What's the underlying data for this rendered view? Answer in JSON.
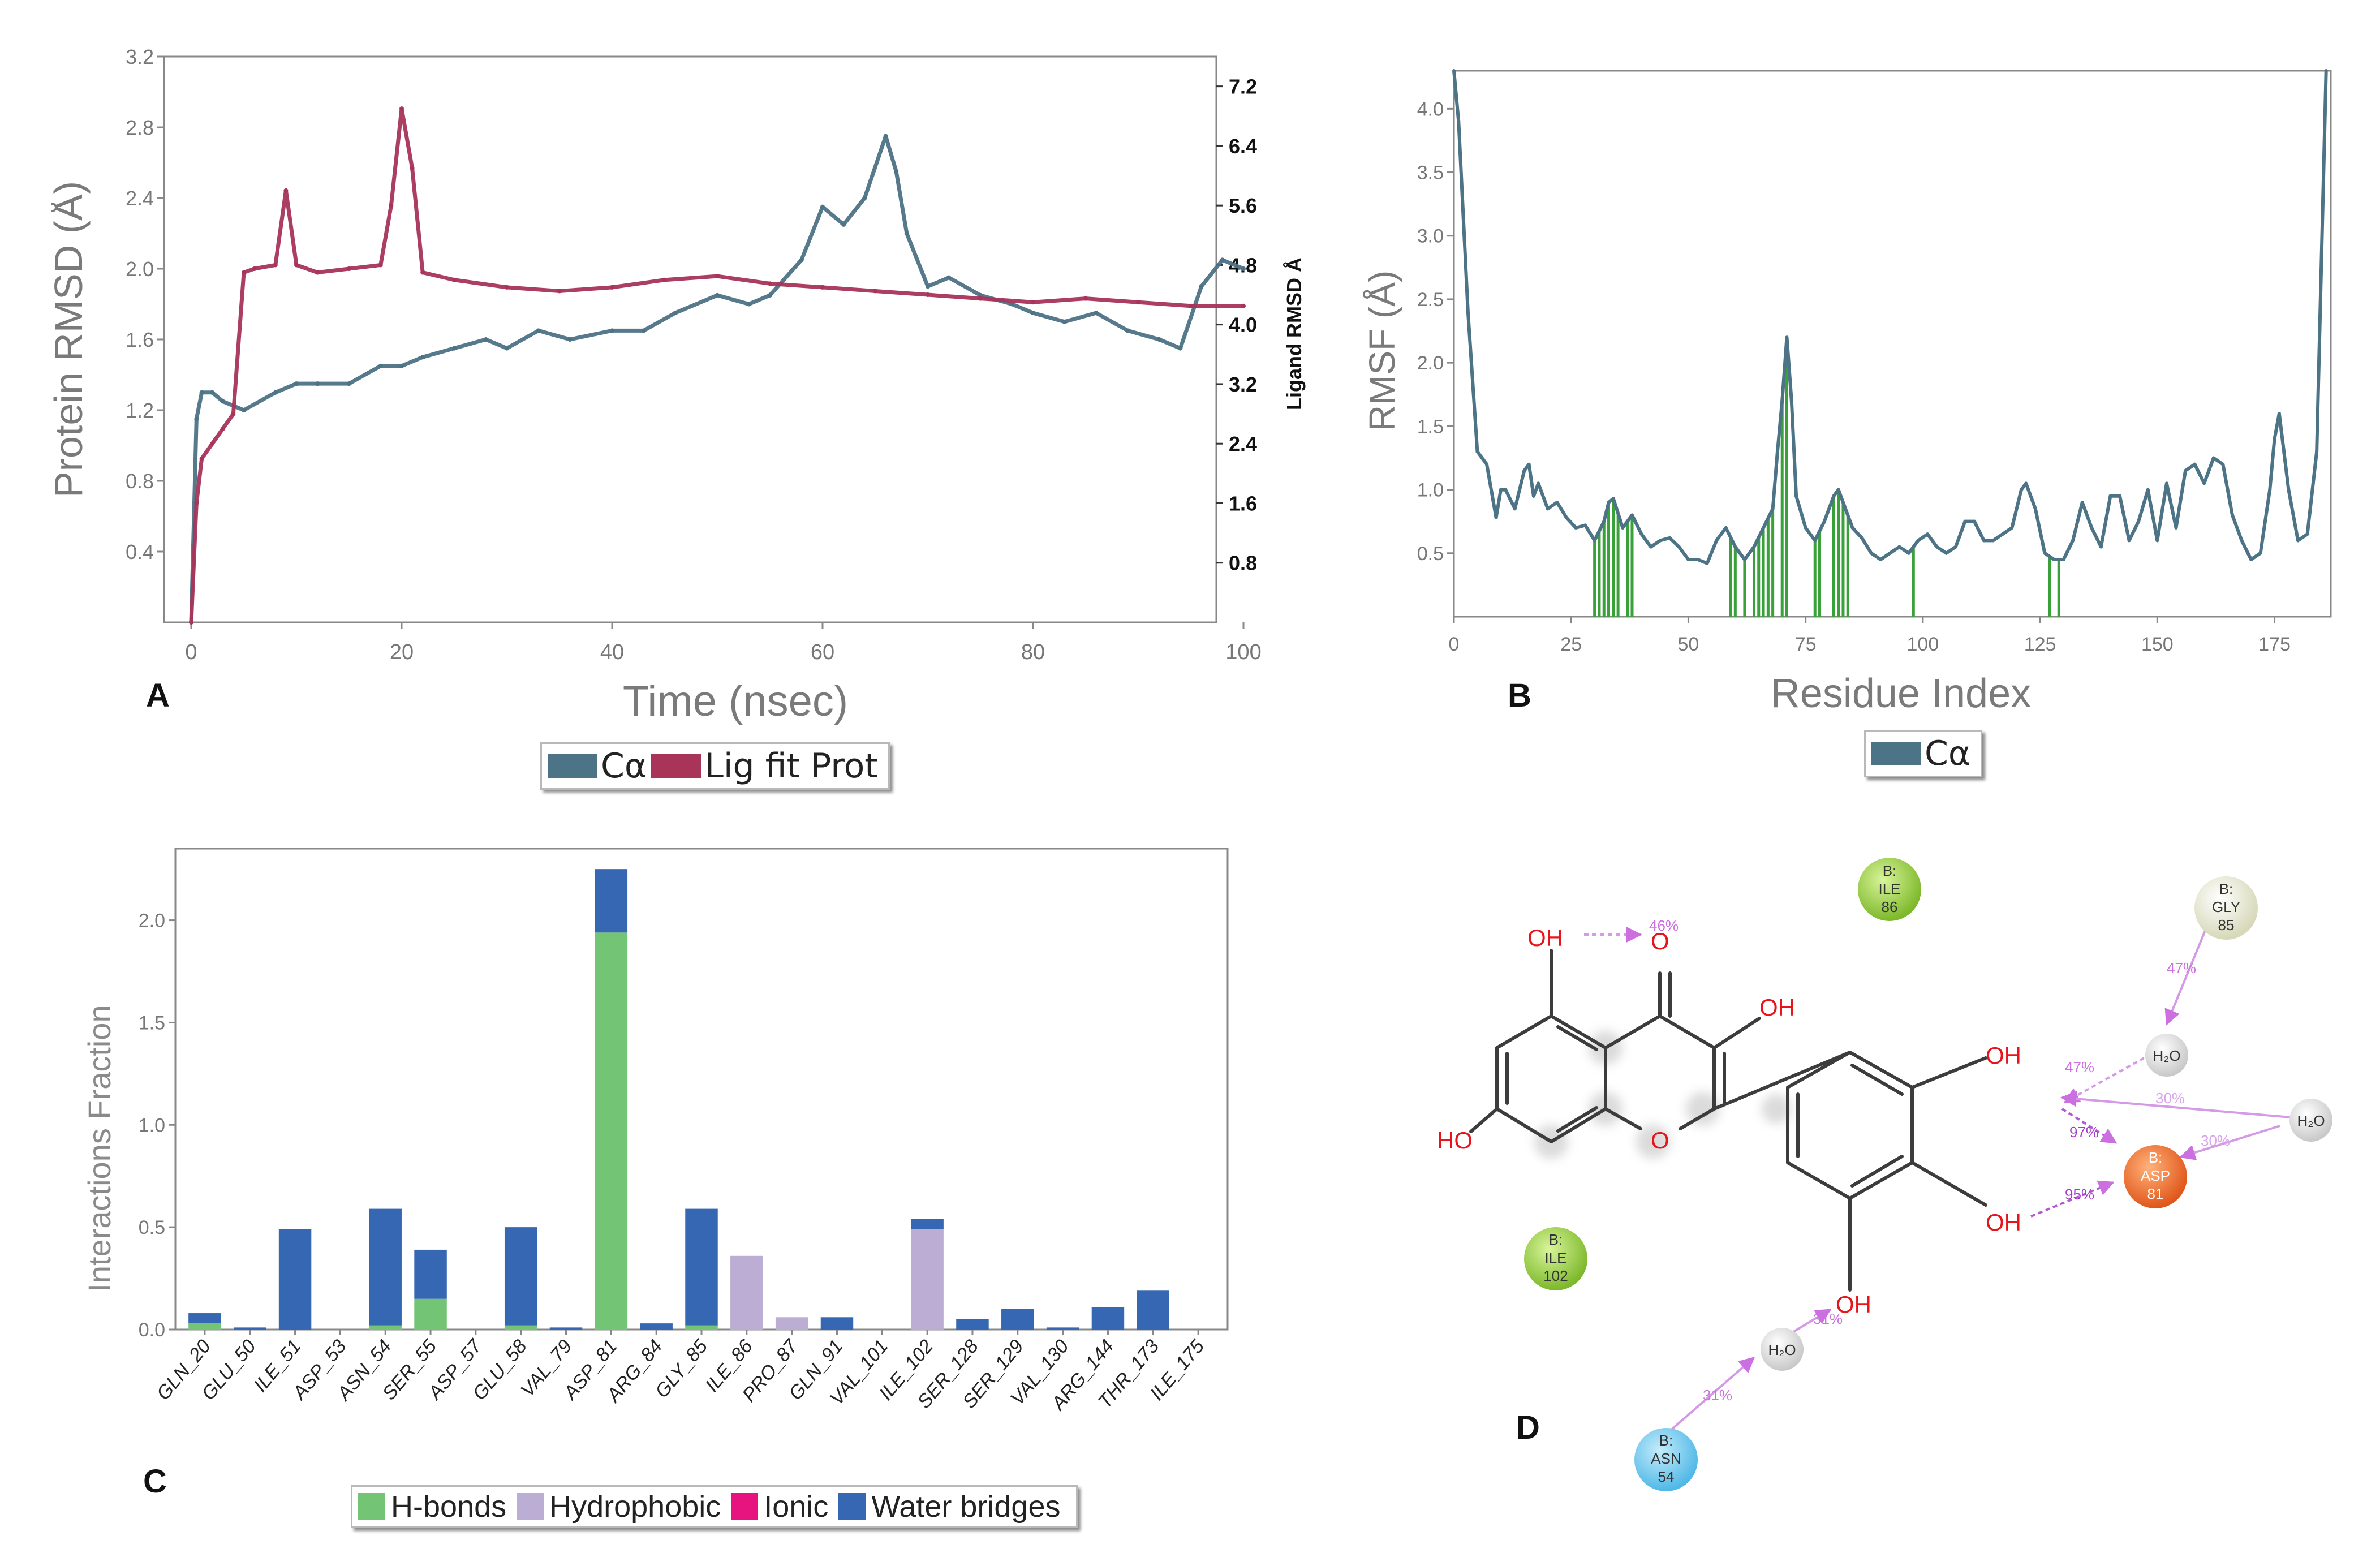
{
  "panel_labels": {
    "a": "A",
    "b": "B",
    "c": "C",
    "d": "D"
  },
  "chart_data": [
    {
      "panel": "A",
      "type": "line",
      "xlabel": "Time (nsec)",
      "ylabel": "Protein RMSD (Å)",
      "y2label": "Ligand RMSD Å",
      "xlim": [
        0,
        100
      ],
      "ylim": [
        0,
        3.2
      ],
      "y2lim": [
        0,
        7.6
      ],
      "xticks": [
        0,
        20,
        40,
        60,
        80,
        100
      ],
      "yticks": [
        0.4,
        0.8,
        1.2,
        1.6,
        2.0,
        2.4,
        2.8,
        3.2
      ],
      "y2ticks": [
        0.8,
        1.6,
        2.4,
        3.2,
        4.0,
        4.8,
        5.6,
        6.4,
        7.2
      ],
      "colors": {
        "ca": "#4d7386",
        "lig": "#a8345a"
      },
      "series": [
        {
          "name": "Cα",
          "axis": "left",
          "x": [
            0,
            0.5,
            1,
            2,
            3,
            5,
            8,
            10,
            12,
            15,
            18,
            20,
            22,
            25,
            28,
            30,
            33,
            36,
            40,
            43,
            46,
            50,
            53,
            55,
            58,
            60,
            62,
            64,
            66,
            67,
            68,
            70,
            72,
            75,
            78,
            80,
            83,
            86,
            89,
            92,
            94,
            96,
            98,
            100
          ],
          "values": [
            0.0,
            1.15,
            1.3,
            1.3,
            1.25,
            1.2,
            1.3,
            1.35,
            1.35,
            1.35,
            1.45,
            1.45,
            1.5,
            1.55,
            1.6,
            1.55,
            1.65,
            1.6,
            1.65,
            1.65,
            1.75,
            1.85,
            1.8,
            1.85,
            2.05,
            2.35,
            2.25,
            2.4,
            2.75,
            2.55,
            2.2,
            1.9,
            1.95,
            1.85,
            1.8,
            1.75,
            1.7,
            1.75,
            1.65,
            1.6,
            1.55,
            1.9,
            2.05,
            2.0
          ]
        },
        {
          "name": "Lig fit Prot",
          "axis": "right",
          "x": [
            0,
            0.5,
            1,
            2,
            3,
            4,
            5,
            6,
            8,
            9,
            10,
            12,
            15,
            18,
            19,
            20,
            21,
            22,
            25,
            30,
            35,
            40,
            45,
            50,
            55,
            60,
            65,
            70,
            75,
            80,
            85,
            90,
            95,
            100
          ],
          "values": [
            0.0,
            1.6,
            2.2,
            2.4,
            2.6,
            2.8,
            4.7,
            4.75,
            4.8,
            5.8,
            4.8,
            4.7,
            4.75,
            4.8,
            5.6,
            6.9,
            6.1,
            4.7,
            4.6,
            4.5,
            4.45,
            4.5,
            4.6,
            4.65,
            4.55,
            4.5,
            4.45,
            4.4,
            4.35,
            4.3,
            4.35,
            4.3,
            4.25,
            4.25
          ]
        }
      ]
    },
    {
      "panel": "B",
      "type": "line",
      "xlabel": "Residue Index",
      "ylabel": "RMSF (Å)",
      "xlim": [
        0,
        187
      ],
      "ylim": [
        0,
        4.3
      ],
      "xticks": [
        0,
        25,
        50,
        75,
        100,
        125,
        150,
        175
      ],
      "yticks": [
        0.5,
        1.0,
        1.5,
        2.0,
        2.5,
        3.0,
        3.5,
        4.0
      ],
      "colors": {
        "line": "#4d7386",
        "marker": "#3aa03a"
      },
      "series": [
        {
          "name": "Cα",
          "x": [
            0,
            1,
            3,
            5,
            7,
            9,
            10,
            11,
            13,
            15,
            16,
            17,
            18,
            20,
            22,
            24,
            26,
            28,
            30,
            32,
            33,
            34,
            36,
            38,
            40,
            42,
            44,
            46,
            48,
            50,
            52,
            54,
            56,
            58,
            60,
            62,
            64,
            66,
            68,
            69,
            70,
            71,
            72,
            73,
            75,
            77,
            79,
            81,
            82,
            83,
            85,
            87,
            89,
            91,
            93,
            95,
            97,
            99,
            101,
            103,
            105,
            107,
            109,
            111,
            113,
            115,
            117,
            119,
            121,
            122,
            124,
            126,
            128,
            130,
            132,
            134,
            136,
            138,
            140,
            142,
            144,
            146,
            148,
            150,
            152,
            154,
            156,
            158,
            160,
            162,
            164,
            166,
            168,
            170,
            172,
            174,
            175,
            176,
            178,
            180,
            182,
            184,
            186
          ],
          "values": [
            4.3,
            3.9,
            2.4,
            1.3,
            1.2,
            0.78,
            1.0,
            1.0,
            0.85,
            1.15,
            1.2,
            0.95,
            1.05,
            0.85,
            0.9,
            0.78,
            0.7,
            0.72,
            0.6,
            0.75,
            0.9,
            0.93,
            0.7,
            0.8,
            0.65,
            0.55,
            0.6,
            0.62,
            0.55,
            0.45,
            0.45,
            0.42,
            0.6,
            0.7,
            0.55,
            0.45,
            0.55,
            0.7,
            0.85,
            1.3,
            1.7,
            2.2,
            1.7,
            0.95,
            0.7,
            0.6,
            0.75,
            0.95,
            1.0,
            0.9,
            0.7,
            0.62,
            0.5,
            0.45,
            0.5,
            0.55,
            0.5,
            0.6,
            0.65,
            0.55,
            0.5,
            0.55,
            0.75,
            0.75,
            0.6,
            0.6,
            0.65,
            0.7,
            1.0,
            1.05,
            0.85,
            0.5,
            0.45,
            0.45,
            0.6,
            0.9,
            0.7,
            0.55,
            0.95,
            0.95,
            0.6,
            0.75,
            1.0,
            0.6,
            1.05,
            0.7,
            1.15,
            1.2,
            1.05,
            1.25,
            1.2,
            0.8,
            0.6,
            0.45,
            0.5,
            1.0,
            1.4,
            1.6,
            1.0,
            0.6,
            0.65,
            1.3,
            4.3
          ]
        }
      ],
      "contact_residues": [
        30,
        31,
        32,
        33,
        34,
        35,
        37,
        38,
        59,
        60,
        62,
        64,
        65,
        66,
        67,
        68,
        70,
        71,
        77,
        78,
        81,
        82,
        83,
        84,
        98,
        127,
        129
      ]
    },
    {
      "panel": "C",
      "type": "bar",
      "ylabel": "Interactions Fraction",
      "ylim": [
        0,
        2.35
      ],
      "yticks": [
        0.0,
        0.5,
        1.0,
        1.5,
        2.0
      ],
      "categories": [
        "GLN_20",
        "GLU_50",
        "ILE_51",
        "ASP_53",
        "ASN_54",
        "SER_55",
        "ASP_57",
        "GLU_58",
        "VAL_79",
        "ASP_81",
        "ARG_84",
        "GLY_85",
        "ILE_86",
        "PRO_87",
        "GLN_91",
        "VAL_101",
        "ILE_102",
        "SER_128",
        "SER_129",
        "VAL_130",
        "ARG_144",
        "THR_173",
        "ILE_175"
      ],
      "colors": {
        "H-bonds": "#74c476",
        "Hydrophobic": "#bcadd4",
        "Ionic": "#e7137f",
        "Water bridges": "#3667b3"
      },
      "series": [
        {
          "name": "H-bonds",
          "values": [
            0.03,
            0.0,
            0.0,
            0.0,
            0.02,
            0.15,
            0.0,
            0.02,
            0.0,
            1.94,
            0.0,
            0.02,
            0.0,
            0.0,
            0.0,
            0.0,
            0.0,
            0.0,
            0.0,
            0.0,
            0.0,
            0.0,
            0.0
          ]
        },
        {
          "name": "Hydrophobic",
          "values": [
            0.0,
            0.0,
            0.0,
            0.0,
            0.0,
            0.0,
            0.0,
            0.0,
            0.0,
            0.0,
            0.0,
            0.0,
            0.36,
            0.06,
            0.0,
            0.0,
            0.49,
            0.0,
            0.0,
            0.0,
            0.0,
            0.0,
            0.0
          ]
        },
        {
          "name": "Ionic",
          "values": [
            0.0,
            0.0,
            0.0,
            0.0,
            0.0,
            0.0,
            0.0,
            0.0,
            0.0,
            0.0,
            0.0,
            0.0,
            0.0,
            0.0,
            0.0,
            0.0,
            0.0,
            0.0,
            0.0,
            0.0,
            0.0,
            0.0,
            0.0
          ]
        },
        {
          "name": "Water bridges",
          "values": [
            0.05,
            0.01,
            0.49,
            0.0,
            0.57,
            0.24,
            0.0,
            0.48,
            0.01,
            0.31,
            0.03,
            0.57,
            0.0,
            0.0,
            0.06,
            0.0,
            0.05,
            0.05,
            0.1,
            0.01,
            0.11,
            0.19,
            0.0
          ]
        }
      ]
    }
  ],
  "diagram_d": {
    "atoms": {
      "oh": "OH",
      "o": "O",
      "ho": "HO",
      "water": "H₂O"
    },
    "residues": [
      {
        "id": "ile86",
        "chain": "B:",
        "name": "ILE",
        "num": "86",
        "color": "#8cc73f"
      },
      {
        "id": "gly85",
        "chain": "B:",
        "name": "GLY",
        "num": "85",
        "color": "#e9ead2"
      },
      {
        "id": "asp81",
        "chain": "B:",
        "name": "ASP",
        "num": "81",
        "color": "#ee6a2b"
      },
      {
        "id": "ile102",
        "chain": "B:",
        "name": "ILE",
        "num": "102",
        "color": "#8cc73f"
      },
      {
        "id": "asn54",
        "chain": "B:",
        "name": "ASN",
        "num": "54",
        "color": "#66c8f0"
      }
    ],
    "interactions": [
      "46%",
      "47%",
      "47%",
      "30%",
      "30%",
      "97%",
      "95%",
      "31%",
      "31%"
    ],
    "colors": {
      "atom": "#e8141c",
      "bond": "#3c3c3c",
      "hbond": "#cc6fe0",
      "water": "#e0e0e0"
    }
  },
  "legend_a": [
    "Cα",
    "Lig fit Prot"
  ],
  "legend_b": [
    "Cα"
  ],
  "legend_c": [
    "H-bonds",
    "Hydrophobic",
    "Ionic",
    "Water bridges"
  ]
}
